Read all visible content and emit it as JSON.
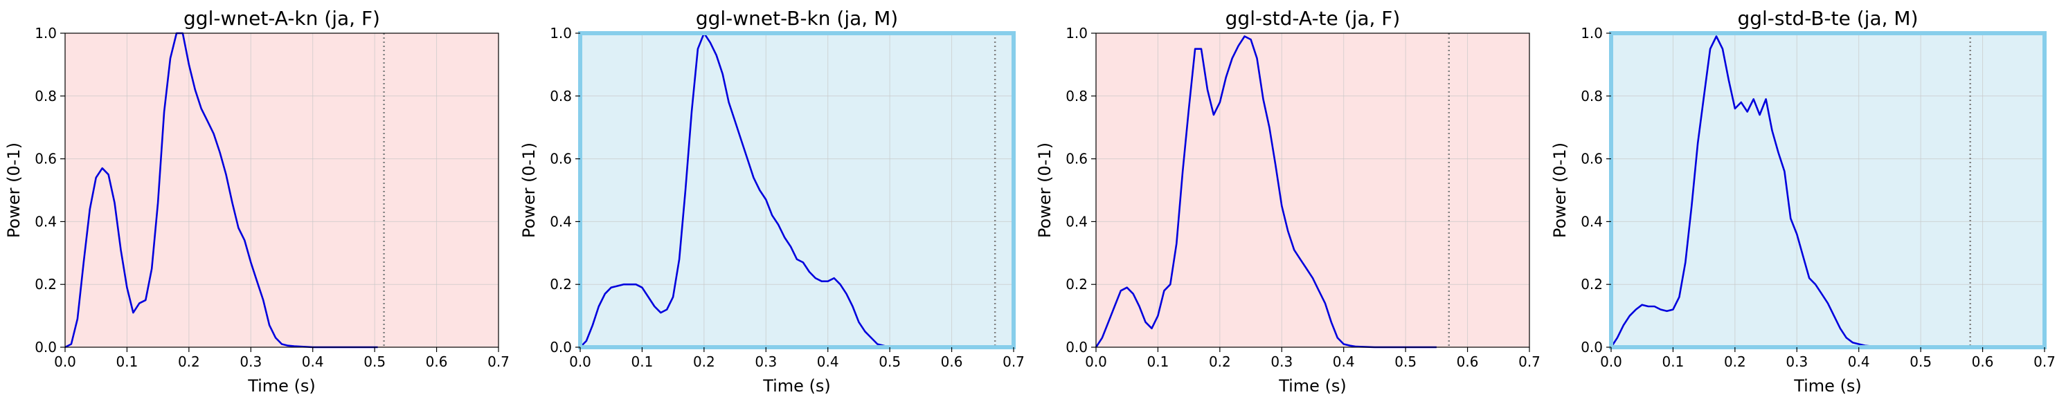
{
  "chart_data": [
    {
      "type": "line",
      "title": "ggl-wnet-A-kn (ja, F)",
      "xlabel": "Time (s)",
      "ylabel": "Power (0-1)",
      "xlim": [
        0,
        0.7
      ],
      "ylim": [
        0,
        1
      ],
      "xticks": [
        "0.0",
        "0.1",
        "0.2",
        "0.3",
        "0.4",
        "0.5",
        "0.6",
        "0.7"
      ],
      "yticks": [
        "0.0",
        "0.2",
        "0.4",
        "0.6",
        "0.8",
        "1.0"
      ],
      "grid": true,
      "background": "#fde3e3",
      "highlight_border": false,
      "line_color": "#0000dd",
      "end_marker_x": 0.515,
      "series": [
        {
          "x": [
            0,
            0.01,
            0.02,
            0.03,
            0.04,
            0.05,
            0.06,
            0.07,
            0.08,
            0.09,
            0.1,
            0.11,
            0.12,
            0.13,
            0.14,
            0.15,
            0.16,
            0.17,
            0.18,
            0.19,
            0.2,
            0.21,
            0.22,
            0.23,
            0.24,
            0.25,
            0.26,
            0.27,
            0.28,
            0.29,
            0.3,
            0.31,
            0.32,
            0.33,
            0.34,
            0.35,
            0.36,
            0.37,
            0.38,
            0.39,
            0.4,
            0.45,
            0.5,
            0.505
          ],
          "y": [
            0.0,
            0.01,
            0.09,
            0.27,
            0.44,
            0.54,
            0.57,
            0.55,
            0.46,
            0.31,
            0.19,
            0.11,
            0.14,
            0.15,
            0.25,
            0.46,
            0.75,
            0.92,
            1.0,
            1.0,
            0.9,
            0.82,
            0.76,
            0.72,
            0.68,
            0.62,
            0.55,
            0.46,
            0.38,
            0.34,
            0.27,
            0.21,
            0.15,
            0.07,
            0.03,
            0.01,
            0.005,
            0.003,
            0.002,
            0.001,
            0.0,
            0.0,
            0.0,
            0.0
          ]
        }
      ]
    },
    {
      "type": "line",
      "title": "ggl-wnet-B-kn (ja, M)",
      "xlabel": "Time (s)",
      "ylabel": "Power (0-1)",
      "xlim": [
        0,
        0.7
      ],
      "ylim": [
        0,
        1
      ],
      "xticks": [
        "0.0",
        "0.1",
        "0.2",
        "0.3",
        "0.4",
        "0.5",
        "0.6",
        "0.7"
      ],
      "yticks": [
        "0.0",
        "0.2",
        "0.4",
        "0.6",
        "0.8",
        "1.0"
      ],
      "grid": true,
      "background": "#def0f7",
      "highlight_border": true,
      "line_color": "#0000dd",
      "end_marker_x": 0.67,
      "series": [
        {
          "x": [
            0,
            0.01,
            0.02,
            0.03,
            0.04,
            0.05,
            0.06,
            0.07,
            0.08,
            0.09,
            0.1,
            0.11,
            0.12,
            0.13,
            0.14,
            0.15,
            0.16,
            0.17,
            0.18,
            0.19,
            0.2,
            0.21,
            0.22,
            0.23,
            0.24,
            0.25,
            0.26,
            0.27,
            0.28,
            0.29,
            0.3,
            0.31,
            0.32,
            0.33,
            0.34,
            0.35,
            0.36,
            0.37,
            0.38,
            0.39,
            0.4,
            0.41,
            0.42,
            0.43,
            0.44,
            0.45,
            0.46,
            0.47,
            0.48,
            0.49,
            0.5
          ],
          "y": [
            0.0,
            0.02,
            0.07,
            0.13,
            0.17,
            0.19,
            0.195,
            0.2,
            0.2,
            0.2,
            0.19,
            0.16,
            0.13,
            0.11,
            0.12,
            0.16,
            0.28,
            0.5,
            0.75,
            0.95,
            1.0,
            0.97,
            0.93,
            0.87,
            0.78,
            0.72,
            0.66,
            0.6,
            0.54,
            0.5,
            0.47,
            0.42,
            0.39,
            0.35,
            0.32,
            0.28,
            0.27,
            0.24,
            0.22,
            0.21,
            0.21,
            0.22,
            0.2,
            0.17,
            0.13,
            0.08,
            0.05,
            0.03,
            0.01,
            0.005,
            0.0
          ]
        }
      ]
    },
    {
      "type": "line",
      "title": "ggl-std-A-te (ja, F)",
      "xlabel": "Time (s)",
      "ylabel": "Power (0-1)",
      "xlim": [
        0,
        0.7
      ],
      "ylim": [
        0,
        1
      ],
      "xticks": [
        "0.0",
        "0.1",
        "0.2",
        "0.3",
        "0.4",
        "0.5",
        "0.6",
        "0.7"
      ],
      "yticks": [
        "0.0",
        "0.2",
        "0.4",
        "0.6",
        "0.8",
        "1.0"
      ],
      "grid": true,
      "background": "#fde3e3",
      "highlight_border": false,
      "line_color": "#0000dd",
      "end_marker_x": 0.57,
      "series": [
        {
          "x": [
            0,
            0.01,
            0.02,
            0.03,
            0.04,
            0.05,
            0.06,
            0.07,
            0.08,
            0.09,
            0.1,
            0.11,
            0.12,
            0.13,
            0.14,
            0.15,
            0.16,
            0.17,
            0.18,
            0.19,
            0.2,
            0.21,
            0.22,
            0.23,
            0.24,
            0.25,
            0.26,
            0.27,
            0.28,
            0.29,
            0.3,
            0.31,
            0.32,
            0.33,
            0.34,
            0.35,
            0.36,
            0.37,
            0.38,
            0.39,
            0.4,
            0.41,
            0.42,
            0.45,
            0.5,
            0.55
          ],
          "y": [
            0.0,
            0.03,
            0.08,
            0.13,
            0.18,
            0.19,
            0.17,
            0.13,
            0.08,
            0.06,
            0.1,
            0.18,
            0.2,
            0.33,
            0.56,
            0.76,
            0.95,
            0.95,
            0.82,
            0.74,
            0.78,
            0.86,
            0.92,
            0.96,
            0.99,
            0.98,
            0.92,
            0.79,
            0.7,
            0.58,
            0.45,
            0.37,
            0.31,
            0.28,
            0.25,
            0.22,
            0.18,
            0.14,
            0.08,
            0.03,
            0.01,
            0.005,
            0.002,
            0.0,
            0.0,
            0.0
          ]
        }
      ]
    },
    {
      "type": "line",
      "title": "ggl-std-B-te (ja, M)",
      "xlabel": "Time (s)",
      "ylabel": "Power (0-1)",
      "xlim": [
        0,
        0.7
      ],
      "ylim": [
        0,
        1
      ],
      "xticks": [
        "0.0",
        "0.1",
        "0.2",
        "0.3",
        "0.4",
        "0.5",
        "0.6",
        "0.7"
      ],
      "yticks": [
        "0.0",
        "0.2",
        "0.4",
        "0.6",
        "0.8",
        "1.0"
      ],
      "grid": true,
      "background": "#def0f7",
      "highlight_border": true,
      "line_color": "#0000dd",
      "end_marker_x": 0.58,
      "series": [
        {
          "x": [
            0,
            0.01,
            0.02,
            0.03,
            0.04,
            0.05,
            0.06,
            0.07,
            0.08,
            0.09,
            0.1,
            0.11,
            0.12,
            0.13,
            0.14,
            0.15,
            0.16,
            0.17,
            0.18,
            0.19,
            0.2,
            0.21,
            0.22,
            0.23,
            0.24,
            0.25,
            0.26,
            0.27,
            0.28,
            0.29,
            0.3,
            0.31,
            0.32,
            0.33,
            0.34,
            0.35,
            0.36,
            0.37,
            0.38,
            0.39,
            0.4,
            0.41,
            0.42,
            0.45,
            0.5,
            0.55,
            0.58
          ],
          "y": [
            0.0,
            0.03,
            0.07,
            0.1,
            0.12,
            0.135,
            0.13,
            0.13,
            0.12,
            0.115,
            0.12,
            0.16,
            0.27,
            0.45,
            0.65,
            0.8,
            0.95,
            0.99,
            0.95,
            0.85,
            0.76,
            0.78,
            0.75,
            0.79,
            0.74,
            0.79,
            0.69,
            0.62,
            0.56,
            0.41,
            0.36,
            0.29,
            0.22,
            0.2,
            0.17,
            0.14,
            0.1,
            0.06,
            0.03,
            0.015,
            0.01,
            0.005,
            0.003,
            0.0,
            0.0,
            0.0,
            0.0
          ]
        }
      ]
    }
  ]
}
